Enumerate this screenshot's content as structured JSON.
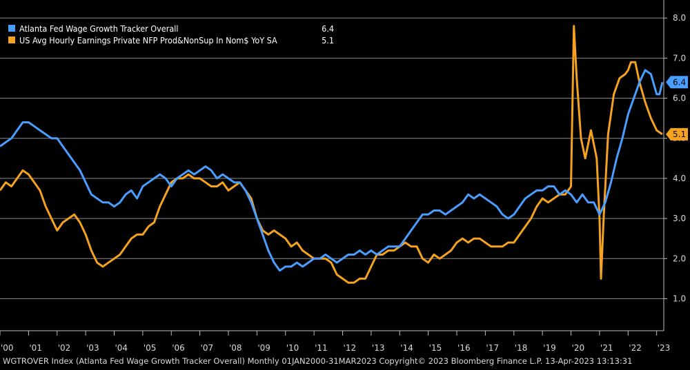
{
  "chart_data": {
    "type": "line",
    "y_ticks": [
      "1.0",
      "2.0",
      "3.0",
      "4.0",
      "5.0",
      "6.0",
      "7.0",
      "8.0"
    ],
    "y_tick_values": [
      1,
      2,
      3,
      4,
      5,
      6,
      7,
      8
    ],
    "ylim": [
      0.2,
      8.45
    ],
    "xlim": [
      2000.0,
      2023.25
    ],
    "x_ticks": [
      {
        "label": "'00",
        "year": 2000
      },
      {
        "label": "'01",
        "year": 2001
      },
      {
        "label": "'02",
        "year": 2002
      },
      {
        "label": "'03",
        "year": 2003
      },
      {
        "label": "'04",
        "year": 2004
      },
      {
        "label": "'05",
        "year": 2005
      },
      {
        "label": "'06",
        "year": 2006
      },
      {
        "label": "'07",
        "year": 2007
      },
      {
        "label": "'08",
        "year": 2008
      },
      {
        "label": "'09",
        "year": 2009
      },
      {
        "label": "'10",
        "year": 2010
      },
      {
        "label": "'11",
        "year": 2011
      },
      {
        "label": "'12",
        "year": 2012
      },
      {
        "label": "'13",
        "year": 2013
      },
      {
        "label": "'14",
        "year": 2014
      },
      {
        "label": "'15",
        "year": 2015
      },
      {
        "label": "'16",
        "year": 2016
      },
      {
        "label": "'17",
        "year": 2017
      },
      {
        "label": "'18",
        "year": 2018
      },
      {
        "label": "'19",
        "year": 2019
      },
      {
        "label": "'20",
        "year": 2020
      },
      {
        "label": "'21",
        "year": 2021
      },
      {
        "label": "'22",
        "year": 2022
      },
      {
        "label": "'23",
        "year": 2023
      }
    ],
    "grid": true,
    "legend_position": "top-left",
    "series": [
      {
        "name": "Atlanta Fed Wage Growth Tracker Overall",
        "last_value": "6.4",
        "color": "#4a9eff",
        "points": [
          [
            2000.0,
            4.8
          ],
          [
            2000.2,
            4.9
          ],
          [
            2000.4,
            5.0
          ],
          [
            2000.6,
            5.2
          ],
          [
            2000.8,
            5.4
          ],
          [
            2001.0,
            5.4
          ],
          [
            2001.2,
            5.3
          ],
          [
            2001.4,
            5.2
          ],
          [
            2001.6,
            5.1
          ],
          [
            2001.8,
            5.0
          ],
          [
            2002.0,
            5.0
          ],
          [
            2002.2,
            4.8
          ],
          [
            2002.4,
            4.6
          ],
          [
            2002.6,
            4.4
          ],
          [
            2002.8,
            4.2
          ],
          [
            2003.0,
            3.9
          ],
          [
            2003.2,
            3.6
          ],
          [
            2003.4,
            3.5
          ],
          [
            2003.6,
            3.4
          ],
          [
            2003.8,
            3.4
          ],
          [
            2004.0,
            3.3
          ],
          [
            2004.2,
            3.4
          ],
          [
            2004.4,
            3.6
          ],
          [
            2004.6,
            3.7
          ],
          [
            2004.8,
            3.5
          ],
          [
            2005.0,
            3.8
          ],
          [
            2005.2,
            3.9
          ],
          [
            2005.4,
            4.0
          ],
          [
            2005.6,
            4.1
          ],
          [
            2005.8,
            4.0
          ],
          [
            2006.0,
            3.8
          ],
          [
            2006.2,
            4.0
          ],
          [
            2006.4,
            4.1
          ],
          [
            2006.6,
            4.2
          ],
          [
            2006.8,
            4.1
          ],
          [
            2007.0,
            4.2
          ],
          [
            2007.2,
            4.3
          ],
          [
            2007.4,
            4.2
          ],
          [
            2007.6,
            4.0
          ],
          [
            2007.8,
            4.1
          ],
          [
            2008.0,
            4.0
          ],
          [
            2008.2,
            3.9
          ],
          [
            2008.4,
            3.9
          ],
          [
            2008.6,
            3.7
          ],
          [
            2008.8,
            3.4
          ],
          [
            2009.0,
            3.0
          ],
          [
            2009.2,
            2.6
          ],
          [
            2009.4,
            2.2
          ],
          [
            2009.6,
            1.9
          ],
          [
            2009.8,
            1.7
          ],
          [
            2010.0,
            1.8
          ],
          [
            2010.2,
            1.8
          ],
          [
            2010.4,
            1.9
          ],
          [
            2010.6,
            1.8
          ],
          [
            2010.8,
            1.9
          ],
          [
            2011.0,
            2.0
          ],
          [
            2011.2,
            2.0
          ],
          [
            2011.4,
            2.1
          ],
          [
            2011.6,
            2.0
          ],
          [
            2011.8,
            1.9
          ],
          [
            2012.0,
            2.0
          ],
          [
            2012.2,
            2.1
          ],
          [
            2012.4,
            2.1
          ],
          [
            2012.6,
            2.2
          ],
          [
            2012.8,
            2.1
          ],
          [
            2013.0,
            2.2
          ],
          [
            2013.2,
            2.1
          ],
          [
            2013.4,
            2.2
          ],
          [
            2013.6,
            2.3
          ],
          [
            2013.8,
            2.3
          ],
          [
            2014.0,
            2.3
          ],
          [
            2014.2,
            2.5
          ],
          [
            2014.4,
            2.7
          ],
          [
            2014.6,
            2.9
          ],
          [
            2014.8,
            3.1
          ],
          [
            2015.0,
            3.1
          ],
          [
            2015.2,
            3.2
          ],
          [
            2015.4,
            3.2
          ],
          [
            2015.6,
            3.1
          ],
          [
            2015.8,
            3.2
          ],
          [
            2016.0,
            3.3
          ],
          [
            2016.2,
            3.4
          ],
          [
            2016.4,
            3.6
          ],
          [
            2016.6,
            3.5
          ],
          [
            2016.8,
            3.6
          ],
          [
            2017.0,
            3.5
          ],
          [
            2017.2,
            3.4
          ],
          [
            2017.4,
            3.3
          ],
          [
            2017.6,
            3.1
          ],
          [
            2017.8,
            3.0
          ],
          [
            2018.0,
            3.1
          ],
          [
            2018.2,
            3.3
          ],
          [
            2018.4,
            3.5
          ],
          [
            2018.6,
            3.6
          ],
          [
            2018.8,
            3.7
          ],
          [
            2019.0,
            3.7
          ],
          [
            2019.2,
            3.8
          ],
          [
            2019.4,
            3.8
          ],
          [
            2019.6,
            3.6
          ],
          [
            2019.8,
            3.7
          ],
          [
            2020.0,
            3.6
          ],
          [
            2020.2,
            3.4
          ],
          [
            2020.4,
            3.6
          ],
          [
            2020.6,
            3.4
          ],
          [
            2020.8,
            3.4
          ],
          [
            2021.0,
            3.1
          ],
          [
            2021.2,
            3.4
          ],
          [
            2021.4,
            3.9
          ],
          [
            2021.6,
            4.5
          ],
          [
            2021.8,
            5.0
          ],
          [
            2022.0,
            5.6
          ],
          [
            2022.2,
            6.0
          ],
          [
            2022.4,
            6.4
          ],
          [
            2022.6,
            6.7
          ],
          [
            2022.8,
            6.6
          ],
          [
            2023.0,
            6.1
          ],
          [
            2023.1,
            6.1
          ],
          [
            2023.2,
            6.4
          ]
        ]
      },
      {
        "name": "US Avg Hourly Earnings Private NFP Prod&NonSup In Nom$ YoY SA",
        "last_value": "5.1",
        "color": "#f4a21f",
        "points": [
          [
            2000.0,
            3.7
          ],
          [
            2000.2,
            3.9
          ],
          [
            2000.4,
            3.8
          ],
          [
            2000.6,
            4.0
          ],
          [
            2000.8,
            4.2
          ],
          [
            2001.0,
            4.1
          ],
          [
            2001.2,
            3.9
          ],
          [
            2001.4,
            3.7
          ],
          [
            2001.6,
            3.3
          ],
          [
            2001.8,
            3.0
          ],
          [
            2002.0,
            2.7
          ],
          [
            2002.2,
            2.9
          ],
          [
            2002.4,
            3.0
          ],
          [
            2002.6,
            3.1
          ],
          [
            2002.8,
            2.9
          ],
          [
            2003.0,
            2.6
          ],
          [
            2003.2,
            2.2
          ],
          [
            2003.4,
            1.9
          ],
          [
            2003.6,
            1.8
          ],
          [
            2003.8,
            1.9
          ],
          [
            2004.0,
            2.0
          ],
          [
            2004.2,
            2.1
          ],
          [
            2004.4,
            2.3
          ],
          [
            2004.6,
            2.5
          ],
          [
            2004.8,
            2.6
          ],
          [
            2005.0,
            2.6
          ],
          [
            2005.2,
            2.8
          ],
          [
            2005.4,
            2.9
          ],
          [
            2005.6,
            3.3
          ],
          [
            2005.8,
            3.6
          ],
          [
            2006.0,
            3.9
          ],
          [
            2006.2,
            4.0
          ],
          [
            2006.4,
            4.0
          ],
          [
            2006.6,
            4.1
          ],
          [
            2006.8,
            4.0
          ],
          [
            2007.0,
            4.0
          ],
          [
            2007.2,
            3.9
          ],
          [
            2007.4,
            3.8
          ],
          [
            2007.6,
            3.8
          ],
          [
            2007.8,
            3.9
          ],
          [
            2008.0,
            3.7
          ],
          [
            2008.2,
            3.8
          ],
          [
            2008.4,
            3.9
          ],
          [
            2008.6,
            3.7
          ],
          [
            2008.8,
            3.5
          ],
          [
            2009.0,
            3.0
          ],
          [
            2009.2,
            2.7
          ],
          [
            2009.4,
            2.6
          ],
          [
            2009.6,
            2.7
          ],
          [
            2009.8,
            2.6
          ],
          [
            2010.0,
            2.5
          ],
          [
            2010.2,
            2.3
          ],
          [
            2010.4,
            2.4
          ],
          [
            2010.6,
            2.2
          ],
          [
            2010.8,
            2.1
          ],
          [
            2011.0,
            2.0
          ],
          [
            2011.2,
            2.0
          ],
          [
            2011.4,
            2.0
          ],
          [
            2011.6,
            1.9
          ],
          [
            2011.8,
            1.6
          ],
          [
            2012.0,
            1.5
          ],
          [
            2012.2,
            1.4
          ],
          [
            2012.4,
            1.4
          ],
          [
            2012.6,
            1.5
          ],
          [
            2012.8,
            1.5
          ],
          [
            2013.0,
            1.8
          ],
          [
            2013.2,
            2.1
          ],
          [
            2013.4,
            2.1
          ],
          [
            2013.6,
            2.2
          ],
          [
            2013.8,
            2.2
          ],
          [
            2014.0,
            2.3
          ],
          [
            2014.2,
            2.4
          ],
          [
            2014.4,
            2.3
          ],
          [
            2014.6,
            2.3
          ],
          [
            2014.8,
            2.0
          ],
          [
            2015.0,
            1.9
          ],
          [
            2015.2,
            2.1
          ],
          [
            2015.4,
            2.0
          ],
          [
            2015.6,
            2.1
          ],
          [
            2015.8,
            2.2
          ],
          [
            2016.0,
            2.4
          ],
          [
            2016.2,
            2.5
          ],
          [
            2016.4,
            2.4
          ],
          [
            2016.6,
            2.5
          ],
          [
            2016.8,
            2.5
          ],
          [
            2017.0,
            2.4
          ],
          [
            2017.2,
            2.3
          ],
          [
            2017.4,
            2.3
          ],
          [
            2017.6,
            2.3
          ],
          [
            2017.8,
            2.4
          ],
          [
            2018.0,
            2.4
          ],
          [
            2018.2,
            2.6
          ],
          [
            2018.4,
            2.8
          ],
          [
            2018.6,
            3.0
          ],
          [
            2018.8,
            3.3
          ],
          [
            2019.0,
            3.5
          ],
          [
            2019.2,
            3.4
          ],
          [
            2019.4,
            3.5
          ],
          [
            2019.6,
            3.6
          ],
          [
            2019.8,
            3.6
          ],
          [
            2020.0,
            3.8
          ],
          [
            2020.1,
            7.8
          ],
          [
            2020.2,
            6.5
          ],
          [
            2020.35,
            5.0
          ],
          [
            2020.5,
            4.5
          ],
          [
            2020.7,
            5.2
          ],
          [
            2020.9,
            4.5
          ],
          [
            2021.0,
            3.0
          ],
          [
            2021.05,
            1.5
          ],
          [
            2021.15,
            3.1
          ],
          [
            2021.3,
            5.1
          ],
          [
            2021.5,
            6.1
          ],
          [
            2021.7,
            6.5
          ],
          [
            2021.9,
            6.6
          ],
          [
            2022.0,
            6.7
          ],
          [
            2022.1,
            6.9
          ],
          [
            2022.25,
            6.9
          ],
          [
            2022.4,
            6.4
          ],
          [
            2022.6,
            5.9
          ],
          [
            2022.8,
            5.5
          ],
          [
            2023.0,
            5.2
          ],
          [
            2023.2,
            5.1
          ]
        ]
      }
    ]
  },
  "footer": {
    "text": "WGTROVER Index (Atlanta Fed Wage Growth Tracker Overall)  Monthly 01JAN2000-31MAR2023 Copyright© 2023 Bloomberg Finance L.P. 13-Apr-2023 13:13:31"
  }
}
